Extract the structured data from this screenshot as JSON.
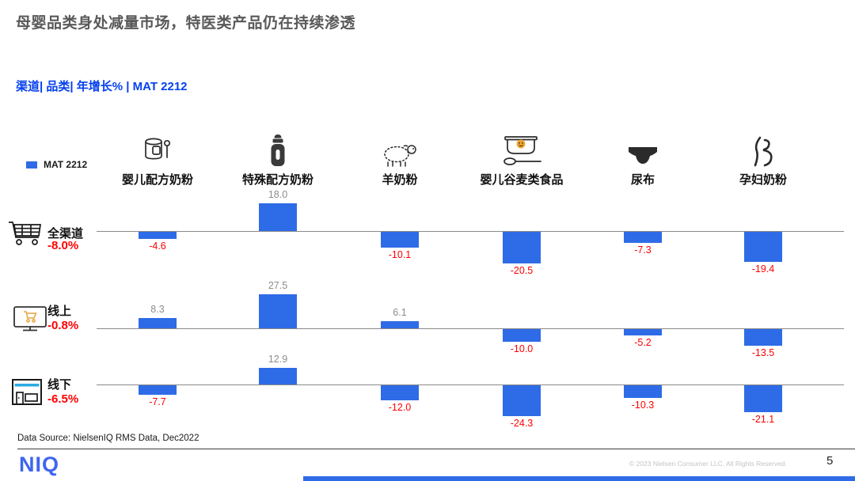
{
  "page": {
    "title": "母婴品类身处减量市场，特医类产品仍在持续渗透",
    "subtitle": "渠道| 品类| 年增长% | MAT 2212"
  },
  "colors": {
    "title_gray": "#595959",
    "subtitle_blue": "#0540EE",
    "bar_blue": "#2E6BE6",
    "negative_red": "#FF0000",
    "positive_gray": "#8C8C8C",
    "logo_blue": "#3E66F0"
  },
  "chart_data": {
    "type": "bar",
    "title": "渠道| 品类| 年增长% | MAT 2212",
    "unit": "%",
    "legend": "MAT 2212",
    "legend_position": "top-left",
    "value_labels_shown": true,
    "grid": false,
    "categories": [
      "婴儿配方奶粉",
      "特殊配方奶粉",
      "羊奶粉",
      "婴儿谷麦类食品",
      "尿布",
      "孕妇奶粉"
    ],
    "category_icons": [
      "formula-can-icon",
      "baby-bottle-icon",
      "sheep-icon",
      "cereal-bowl-icon",
      "diaper-icon",
      "pregnant-woman-icon"
    ],
    "series": [
      {
        "name": "全渠道",
        "total_growth": "-8.0%",
        "icon": "cart-icon",
        "values": [
          -4.6,
          18.0,
          -10.1,
          -20.5,
          -7.3,
          -19.4
        ]
      },
      {
        "name": "线上",
        "total_growth": "-0.8%",
        "icon": "online-store-icon",
        "values": [
          8.3,
          27.5,
          6.1,
          -10.0,
          -5.2,
          -13.5
        ]
      },
      {
        "name": "线下",
        "total_growth": "-6.5%",
        "icon": "store-icon",
        "values": [
          -7.7,
          12.9,
          -12.0,
          -24.3,
          -10.3,
          -21.1
        ]
      }
    ],
    "bar_color": "#2E6BE6",
    "positive_label_color": "#8C8C8C",
    "negative_label_color": "#FF0000"
  },
  "footer": {
    "data_source": "Data Source: NielsenIQ RMS Data, Dec2022",
    "logo": "NIQ",
    "copyright": "© 2023 Nielsen Consumer LLC. All Rights Reserved.",
    "page_number": "5"
  }
}
